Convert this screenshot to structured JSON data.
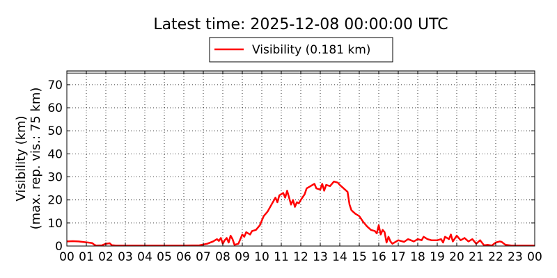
{
  "chart_data": {
    "type": "line",
    "title": "Latest time: 2025-12-08 00:00:00 UTC",
    "legend": {
      "placement": "top-center",
      "position": "outside-above-plot"
    },
    "series": [
      {
        "name": "Visibility (0.181 km)",
        "color": "#ff0000",
        "points": [
          [
            0.0,
            2.0
          ],
          [
            0.3,
            2.1
          ],
          [
            0.6,
            2.0
          ],
          [
            0.9,
            1.7
          ],
          [
            1.1,
            1.5
          ],
          [
            1.3,
            1.3
          ],
          [
            1.4,
            0.6
          ],
          [
            1.5,
            0.2
          ],
          [
            1.8,
            0.3
          ],
          [
            2.0,
            1.0
          ],
          [
            2.2,
            1.2
          ],
          [
            2.3,
            0.4
          ],
          [
            2.5,
            0.2
          ],
          [
            3.0,
            0.2
          ],
          [
            4.0,
            0.2
          ],
          [
            5.0,
            0.2
          ],
          [
            6.0,
            0.2
          ],
          [
            6.8,
            0.3
          ],
          [
            7.2,
            1.0
          ],
          [
            7.5,
            2.0
          ],
          [
            7.7,
            3.0
          ],
          [
            7.8,
            2.2
          ],
          [
            7.9,
            3.5
          ],
          [
            8.0,
            1.0
          ],
          [
            8.1,
            2.5
          ],
          [
            8.2,
            3.5
          ],
          [
            8.3,
            1.5
          ],
          [
            8.4,
            4.5
          ],
          [
            8.5,
            3.0
          ],
          [
            8.6,
            0.5
          ],
          [
            8.8,
            1.0
          ],
          [
            8.9,
            3.0
          ],
          [
            9.0,
            5.0
          ],
          [
            9.1,
            4.0
          ],
          [
            9.2,
            6.0
          ],
          [
            9.4,
            5.0
          ],
          [
            9.5,
            6.5
          ],
          [
            9.7,
            7.0
          ],
          [
            9.9,
            9.0
          ],
          [
            10.0,
            11.0
          ],
          [
            10.1,
            13.0
          ],
          [
            10.3,
            15.0
          ],
          [
            10.5,
            18.0
          ],
          [
            10.7,
            21.0
          ],
          [
            10.8,
            19.0
          ],
          [
            10.9,
            22.0
          ],
          [
            11.1,
            23.0
          ],
          [
            11.2,
            21.0
          ],
          [
            11.3,
            24.0
          ],
          [
            11.5,
            18.0
          ],
          [
            11.6,
            20.0
          ],
          [
            11.7,
            17.0
          ],
          [
            11.8,
            19.0
          ],
          [
            11.9,
            18.5
          ],
          [
            12.0,
            20.0
          ],
          [
            12.2,
            22.5
          ],
          [
            12.3,
            25.0
          ],
          [
            12.5,
            26.0
          ],
          [
            12.7,
            27.0
          ],
          [
            12.8,
            25.0
          ],
          [
            13.0,
            24.5
          ],
          [
            13.1,
            27.0
          ],
          [
            13.2,
            24.0
          ],
          [
            13.3,
            26.5
          ],
          [
            13.5,
            26.0
          ],
          [
            13.7,
            28.0
          ],
          [
            13.9,
            27.5
          ],
          [
            14.0,
            26.5
          ],
          [
            14.2,
            25.0
          ],
          [
            14.4,
            23.5
          ],
          [
            14.5,
            18.0
          ],
          [
            14.6,
            15.5
          ],
          [
            14.8,
            14.0
          ],
          [
            15.0,
            13.0
          ],
          [
            15.2,
            10.5
          ],
          [
            15.4,
            8.5
          ],
          [
            15.6,
            7.0
          ],
          [
            15.8,
            6.5
          ],
          [
            15.9,
            5.5
          ],
          [
            16.0,
            9.0
          ],
          [
            16.1,
            5.0
          ],
          [
            16.2,
            7.0
          ],
          [
            16.3,
            6.0
          ],
          [
            16.4,
            1.5
          ],
          [
            16.5,
            4.0
          ],
          [
            16.6,
            2.0
          ],
          [
            16.7,
            1.0
          ],
          [
            17.0,
            2.5
          ],
          [
            17.3,
            1.8
          ],
          [
            17.5,
            3.0
          ],
          [
            17.8,
            2.0
          ],
          [
            18.0,
            3.0
          ],
          [
            18.2,
            2.5
          ],
          [
            18.3,
            4.0
          ],
          [
            18.5,
            3.0
          ],
          [
            18.7,
            2.5
          ],
          [
            19.0,
            2.5
          ],
          [
            19.2,
            3.0
          ],
          [
            19.3,
            1.5
          ],
          [
            19.4,
            4.0
          ],
          [
            19.6,
            3.0
          ],
          [
            19.7,
            5.0
          ],
          [
            19.8,
            2.0
          ],
          [
            20.0,
            4.5
          ],
          [
            20.2,
            2.5
          ],
          [
            20.4,
            3.5
          ],
          [
            20.6,
            2.0
          ],
          [
            20.8,
            3.0
          ],
          [
            21.0,
            1.0
          ],
          [
            21.2,
            2.5
          ],
          [
            21.4,
            0.3
          ],
          [
            21.6,
            0.5
          ],
          [
            21.8,
            0.2
          ],
          [
            22.0,
            1.5
          ],
          [
            22.2,
            2.0
          ],
          [
            22.3,
            1.8
          ],
          [
            22.5,
            0.5
          ],
          [
            22.8,
            0.2
          ],
          [
            23.5,
            0.2
          ],
          [
            24.0,
            0.2
          ]
        ]
      }
    ],
    "xaxis": {
      "range": [
        0,
        24
      ],
      "ticks": [
        0,
        1,
        2,
        3,
        4,
        5,
        6,
        7,
        8,
        9,
        10,
        11,
        12,
        13,
        14,
        15,
        16,
        17,
        18,
        19,
        20,
        21,
        22,
        23,
        24
      ],
      "tick_labels": [
        "00",
        "01",
        "02",
        "03",
        "04",
        "05",
        "06",
        "07",
        "08",
        "09",
        "10",
        "11",
        "12",
        "13",
        "14",
        "15",
        "16",
        "17",
        "18",
        "19",
        "20",
        "21",
        "22",
        "23",
        "00"
      ]
    },
    "yaxis": {
      "range": [
        0,
        76
      ],
      "ticks": [
        0,
        10,
        20,
        30,
        40,
        50,
        60,
        70
      ],
      "tick_labels": [
        "0",
        "10",
        "20",
        "30",
        "40",
        "50",
        "60",
        "70"
      ],
      "label_line1": "Visibility (km)",
      "label_line2": "(max. rep. vis.: 75 km)"
    },
    "grid": true,
    "grid_style": "dotted",
    "max_reference": 75
  }
}
